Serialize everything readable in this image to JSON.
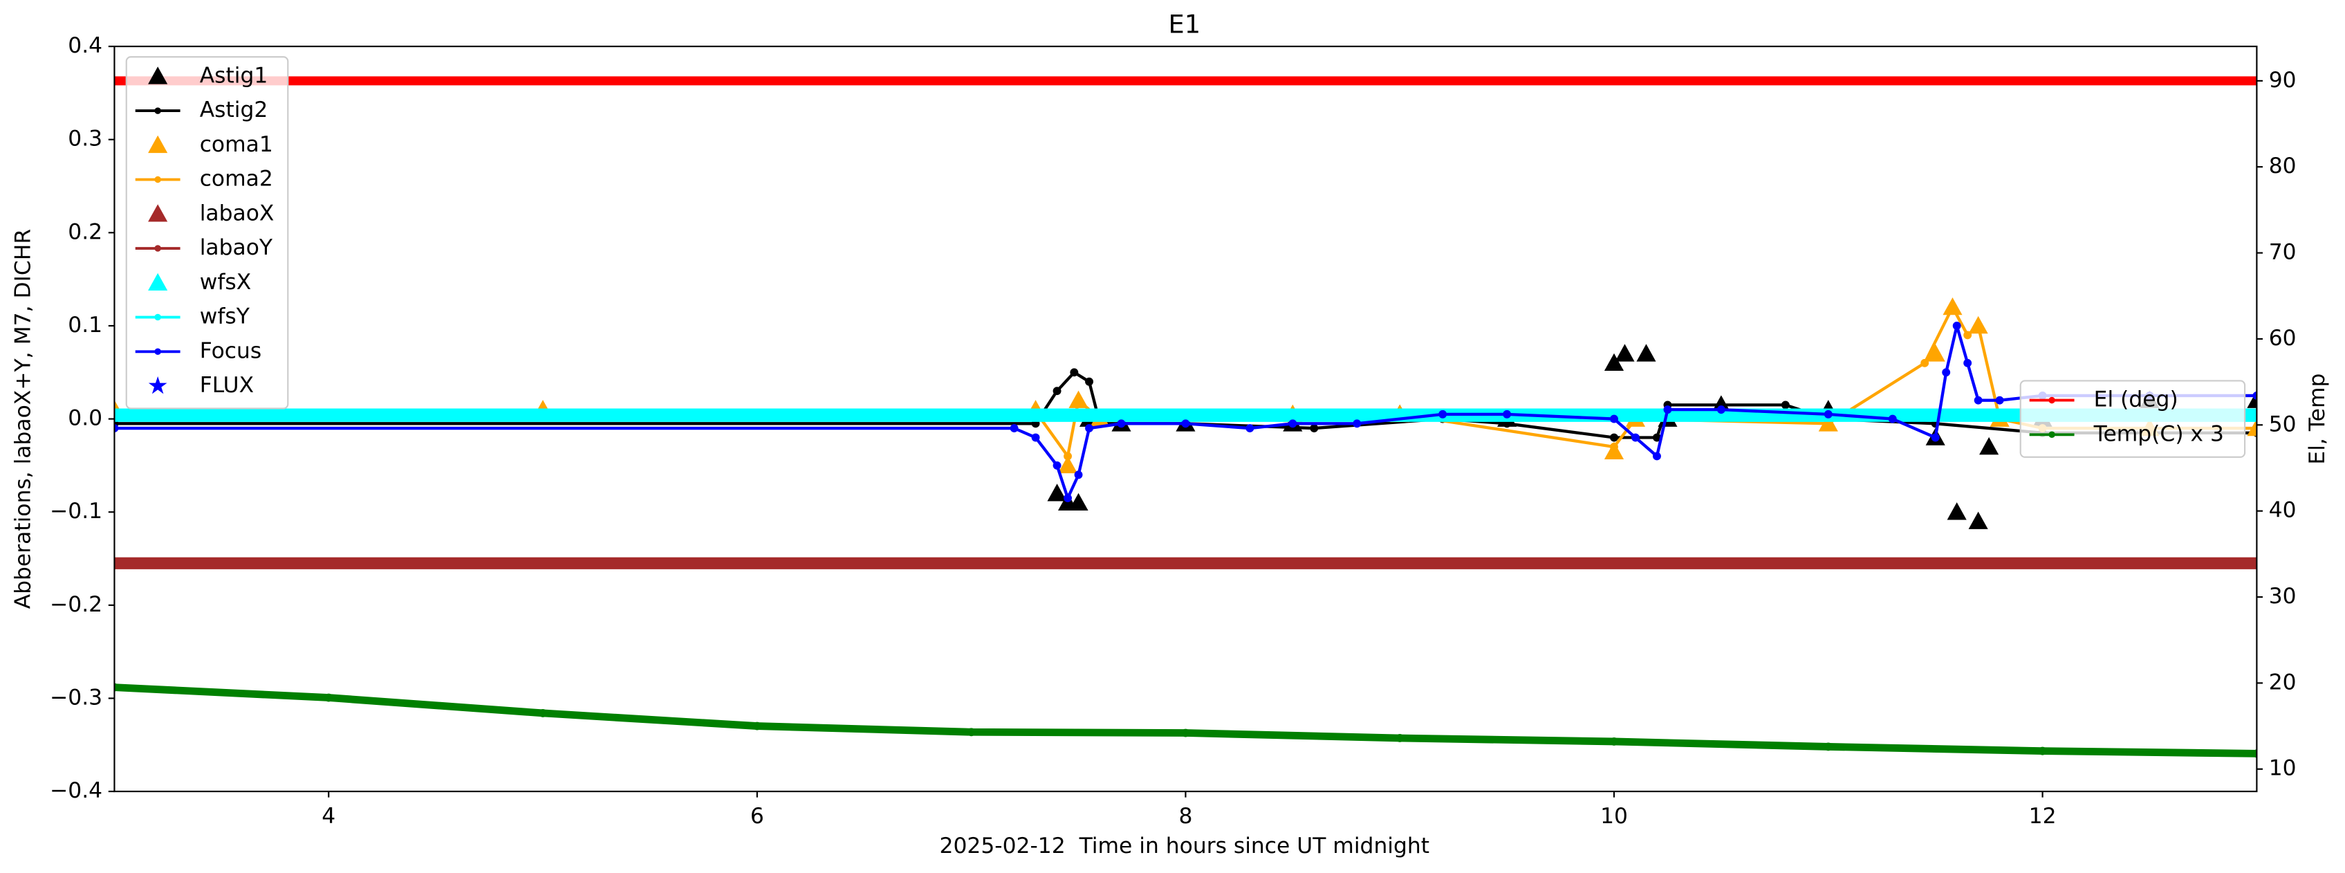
{
  "chart_data": {
    "type": "line",
    "title": "E1",
    "xlabel": "2025-02-12  Time in hours since UT midnight",
    "ylabel": "Abberations, labaoX+Y, M7, DICHR",
    "y2label": "El, Temp",
    "xlim": [
      3,
      13
    ],
    "xticks": [
      4,
      6,
      8,
      10,
      12
    ],
    "ylim": [
      -0.4,
      0.4
    ],
    "yticks": [
      {
        "value": -0.4,
        "label": "−0.4"
      },
      {
        "value": -0.3,
        "label": "−0.3"
      },
      {
        "value": -0.2,
        "label": "−0.2"
      },
      {
        "value": -0.1,
        "label": "−0.1"
      },
      {
        "value": 0,
        "label": "0.0"
      },
      0.1,
      0.2,
      0.3,
      0.4
    ],
    "y2lim": [
      7.4,
      94
    ],
    "y2ticks": [
      10,
      20,
      30,
      40,
      50,
      60,
      70,
      80,
      90
    ],
    "legend": "upper left",
    "legend2": "center right",
    "series": [
      {
        "name": "Astig1",
        "color": "#000000",
        "marker": "triangle",
        "line": false,
        "x": [
          7.4,
          7.45,
          7.5,
          7.55,
          7.7,
          8.0,
          8.5,
          9.0,
          9.5,
          10.0,
          10.05,
          10.15,
          10.25,
          10.5,
          11.0,
          11.5,
          11.6,
          11.7,
          11.75,
          12.0,
          12.5,
          13.0
        ],
        "values": [
          -0.08,
          -0.09,
          -0.09,
          0.0,
          -0.005,
          -0.005,
          -0.005,
          0.005,
          0.0,
          0.06,
          0.07,
          0.07,
          0.0,
          0.015,
          0.01,
          -0.02,
          -0.1,
          -0.11,
          -0.03,
          0.0,
          0.02,
          0.02
        ]
      },
      {
        "name": "Astig2",
        "color": "#000000",
        "marker": "circle",
        "line": true,
        "x": [
          3,
          7.3,
          7.4,
          7.48,
          7.55,
          7.6,
          8.0,
          8.6,
          9.2,
          9.5,
          10.0,
          10.2,
          10.25,
          10.8,
          11.0,
          11.5,
          12.0,
          13.0
        ],
        "values": [
          -0.005,
          -0.005,
          0.03,
          0.05,
          0.04,
          -0.005,
          -0.005,
          -0.01,
          0.0,
          -0.005,
          -0.02,
          -0.02,
          0.015,
          0.015,
          0.0,
          -0.005,
          -0.015,
          -0.015
        ]
      },
      {
        "name": "coma1",
        "color": "#ffa500",
        "marker": "triangle",
        "line": false,
        "x": [
          3,
          5,
          7.3,
          7.45,
          7.5,
          7.6,
          8.5,
          9.0,
          10.0,
          10.1,
          11.0,
          11.5,
          11.58,
          11.7,
          11.8,
          12.5,
          13.0
        ],
        "values": [
          0.01,
          0.01,
          0.01,
          -0.05,
          0.02,
          0.0,
          0.005,
          0.005,
          -0.035,
          0.0,
          -0.005,
          0.07,
          0.12,
          0.1,
          0.0,
          -0.01,
          -0.01
        ]
      },
      {
        "name": "coma2",
        "color": "#ffa500",
        "marker": "circle",
        "line": true,
        "x": [
          3,
          7.3,
          7.45,
          7.5,
          7.6,
          9.0,
          10.0,
          10.1,
          11.0,
          11.45,
          11.58,
          11.65,
          11.7,
          11.8,
          12.0,
          13.0
        ],
        "values": [
          0.008,
          0.008,
          -0.04,
          0.02,
          0.0,
          0.005,
          -0.03,
          0.0,
          -0.005,
          0.06,
          0.12,
          0.09,
          0.1,
          0.0,
          -0.01,
          -0.01
        ]
      },
      {
        "name": "labaoX",
        "color": "#a52a2a",
        "marker": "triangle",
        "line": false,
        "x": [],
        "values": []
      },
      {
        "name": "labaoY",
        "color": "#a52a2a",
        "marker": "circle",
        "line": true,
        "x": [
          3,
          13
        ],
        "values": [
          -0.155,
          -0.155
        ]
      },
      {
        "name": "wfsX",
        "color": "#00ffff",
        "marker": "triangle",
        "line": false,
        "x": [],
        "values": []
      },
      {
        "name": "wfsY",
        "color": "#00ffff",
        "marker": "circle",
        "line": true,
        "x": [
          3,
          13
        ],
        "values": [
          0.004,
          0.004
        ]
      },
      {
        "name": "Focus",
        "color": "#0000ff",
        "marker": "circle",
        "line": true,
        "x": [
          3,
          7.2,
          7.3,
          7.4,
          7.45,
          7.5,
          7.55,
          7.7,
          8.0,
          8.3,
          8.5,
          8.8,
          9.2,
          9.5,
          10.0,
          10.1,
          10.2,
          10.25,
          10.5,
          11.0,
          11.3,
          11.5,
          11.55,
          11.6,
          11.65,
          11.7,
          11.8,
          12.0,
          12.5,
          13.0
        ],
        "values": [
          -0.01,
          -0.01,
          -0.02,
          -0.05,
          -0.085,
          -0.06,
          -0.01,
          -0.005,
          -0.005,
          -0.01,
          -0.005,
          -0.005,
          0.005,
          0.005,
          0.0,
          -0.02,
          -0.04,
          0.01,
          0.01,
          0.005,
          0.0,
          -0.02,
          0.05,
          0.1,
          0.06,
          0.02,
          0.02,
          0.025,
          0.025,
          0.025
        ]
      },
      {
        "name": "FLUX",
        "color": "#0000ff",
        "marker": "star",
        "line": false,
        "x": [],
        "values": []
      },
      {
        "name": "El (deg)",
        "color": "#ff0000",
        "marker": "circle",
        "line": true,
        "axis": "y2",
        "x": [
          3,
          13
        ],
        "values": [
          90,
          90
        ]
      },
      {
        "name": "Temp(C) x 3",
        "color": "#008000",
        "marker": "circle",
        "line": true,
        "axis": "y2",
        "x": [
          3,
          4,
          5,
          6,
          7,
          8,
          9,
          10,
          11,
          12,
          13
        ],
        "values": [
          19.5,
          18.3,
          16.5,
          15.0,
          14.3,
          14.2,
          13.6,
          13.2,
          12.6,
          12.1,
          11.8
        ]
      }
    ]
  }
}
